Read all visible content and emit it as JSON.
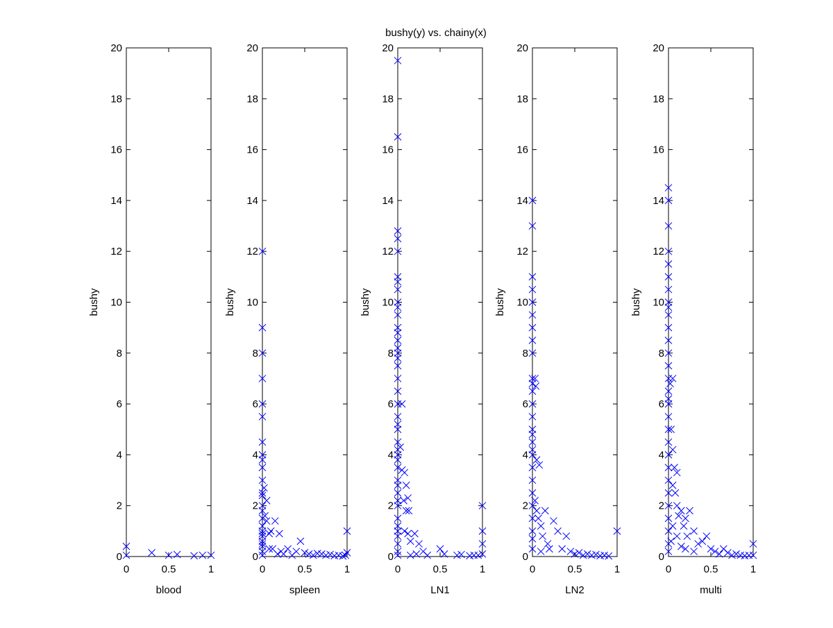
{
  "chart_data": {
    "type": "scatter",
    "title": "bushy(y) vs. chainy(x)",
    "marker": "x",
    "color": "#0000ff",
    "ylim": [
      0,
      20
    ],
    "xlim": [
      0,
      1
    ],
    "yticks": [
      "0",
      "2",
      "4",
      "6",
      "8",
      "10",
      "12",
      "14",
      "16",
      "18",
      "20"
    ],
    "xticks": [
      "0",
      "0.5",
      "1"
    ],
    "grid": false,
    "panels": [
      {
        "xlabel": "blood",
        "ylabel": "bushy",
        "points": [
          [
            0,
            0.4
          ],
          [
            0,
            0.05
          ],
          [
            0.3,
            0.15
          ],
          [
            0.5,
            0.05
          ],
          [
            0.6,
            0.08
          ],
          [
            0.8,
            0.03
          ],
          [
            0.9,
            0.05
          ],
          [
            1,
            0.05
          ]
        ]
      },
      {
        "xlabel": "spleen",
        "ylabel": "bushy",
        "points": [
          [
            0,
            12
          ],
          [
            0,
            9
          ],
          [
            0,
            8
          ],
          [
            0,
            7
          ],
          [
            0,
            6
          ],
          [
            0,
            5.5
          ],
          [
            0,
            4.5
          ],
          [
            0,
            4
          ],
          [
            0,
            3.8
          ],
          [
            0,
            3.5
          ],
          [
            0,
            3
          ],
          [
            0,
            2.5
          ],
          [
            0,
            2.4
          ],
          [
            0,
            2
          ],
          [
            0,
            1.8
          ],
          [
            0,
            1.5
          ],
          [
            0,
            1.2
          ],
          [
            0,
            1
          ],
          [
            0,
            0.9
          ],
          [
            0,
            0.8
          ],
          [
            0,
            0.6
          ],
          [
            0,
            0.5
          ],
          [
            0,
            0.4
          ],
          [
            0,
            0.2
          ],
          [
            0,
            0.05
          ],
          [
            0.02,
            2.7
          ],
          [
            0.05,
            2.2
          ],
          [
            0.03,
            1.6
          ],
          [
            0.05,
            1.4
          ],
          [
            0.08,
            0.9
          ],
          [
            0.1,
            1.0
          ],
          [
            0.12,
            0.3
          ],
          [
            0.15,
            1.4
          ],
          [
            0.08,
            0.3
          ],
          [
            0.2,
            0.9
          ],
          [
            0.25,
            0.1
          ],
          [
            0.3,
            0.3
          ],
          [
            0.35,
            0.05
          ],
          [
            0.45,
            0.6
          ],
          [
            0.4,
            0.2
          ],
          [
            0.5,
            0.15
          ],
          [
            0.55,
            0.1
          ],
          [
            0.6,
            0.05
          ],
          [
            0.65,
            0.12
          ],
          [
            0.7,
            0.1
          ],
          [
            0.75,
            0.05
          ],
          [
            0.8,
            0.08
          ],
          [
            0.85,
            0.03
          ],
          [
            0.9,
            0.05
          ],
          [
            0.95,
            0.02
          ],
          [
            1,
            1.0
          ],
          [
            1,
            0.15
          ],
          [
            0.98,
            0.05
          ],
          [
            0.18,
            0.1
          ],
          [
            0.22,
            0.2
          ]
        ]
      },
      {
        "xlabel": "LN1",
        "ylabel": "bushy",
        "points": [
          [
            0,
            19.5
          ],
          [
            0,
            16.5
          ],
          [
            0,
            12.8
          ],
          [
            0,
            12.5
          ],
          [
            0,
            12
          ],
          [
            0,
            11
          ],
          [
            0,
            10.8
          ],
          [
            0,
            10.5
          ],
          [
            0,
            10
          ],
          [
            0,
            9.8
          ],
          [
            0,
            9.5
          ],
          [
            0,
            9
          ],
          [
            0,
            8.8
          ],
          [
            0,
            8.5
          ],
          [
            0,
            8.2
          ],
          [
            0,
            8
          ],
          [
            0,
            7.8
          ],
          [
            0,
            7.5
          ],
          [
            0,
            7
          ],
          [
            0,
            6.5
          ],
          [
            0,
            6
          ],
          [
            0,
            5.5
          ],
          [
            0,
            5.2
          ],
          [
            0,
            5
          ],
          [
            0,
            4.5
          ],
          [
            0,
            4.2
          ],
          [
            0,
            4
          ],
          [
            0,
            3.8
          ],
          [
            0,
            3.5
          ],
          [
            0,
            3
          ],
          [
            0,
            2.8
          ],
          [
            0,
            2.5
          ],
          [
            0,
            2.2
          ],
          [
            0,
            2
          ],
          [
            0,
            1.5
          ],
          [
            0,
            1.2
          ],
          [
            0,
            1
          ],
          [
            0,
            0.8
          ],
          [
            0,
            0.5
          ],
          [
            0,
            0.2
          ],
          [
            0,
            0.05
          ],
          [
            0.05,
            6
          ],
          [
            0.03,
            4.3
          ],
          [
            0.05,
            3.4
          ],
          [
            0.08,
            3.3
          ],
          [
            0.1,
            2.8
          ],
          [
            0.07,
            2.2
          ],
          [
            0.12,
            2.3
          ],
          [
            0.1,
            1.8
          ],
          [
            0.13,
            1.8
          ],
          [
            0.08,
            1.0
          ],
          [
            0.12,
            0.9
          ],
          [
            0.15,
            0.6
          ],
          [
            0.2,
            0.9
          ],
          [
            0.25,
            0.5
          ],
          [
            0.22,
            0.1
          ],
          [
            0.3,
            0.2
          ],
          [
            0.35,
            0.05
          ],
          [
            0.5,
            0.3
          ],
          [
            0.55,
            0.1
          ],
          [
            0.7,
            0.05
          ],
          [
            0.75,
            0.08
          ],
          [
            0.85,
            0.03
          ],
          [
            0.9,
            0.05
          ],
          [
            0.95,
            0.05
          ],
          [
            1,
            2.0
          ],
          [
            1,
            1.0
          ],
          [
            1,
            0.5
          ],
          [
            1,
            0.1
          ],
          [
            0.15,
            0.05
          ]
        ]
      },
      {
        "xlabel": "LN2",
        "ylabel": "bushy",
        "points": [
          [
            0,
            14
          ],
          [
            0,
            13
          ],
          [
            0,
            11
          ],
          [
            0,
            10.5
          ],
          [
            0,
            10
          ],
          [
            0,
            9.5
          ],
          [
            0,
            9
          ],
          [
            0,
            8.5
          ],
          [
            0,
            8
          ],
          [
            0,
            7
          ],
          [
            0,
            6.8
          ],
          [
            0,
            6.5
          ],
          [
            0,
            6
          ],
          [
            0,
            5.5
          ],
          [
            0,
            5
          ],
          [
            0,
            4.8
          ],
          [
            0,
            4.5
          ],
          [
            0,
            4.2
          ],
          [
            0,
            4
          ],
          [
            0,
            3.5
          ],
          [
            0,
            3
          ],
          [
            0,
            2.5
          ],
          [
            0,
            2
          ],
          [
            0,
            1.5
          ],
          [
            0,
            1
          ],
          [
            0,
            0.7
          ],
          [
            0,
            0.3
          ],
          [
            0.03,
            7
          ],
          [
            0.04,
            6.7
          ],
          [
            0.05,
            3.8
          ],
          [
            0.08,
            3.6
          ],
          [
            0.03,
            2.2
          ],
          [
            0.05,
            1.8
          ],
          [
            0.07,
            1.5
          ],
          [
            0.1,
            1.2
          ],
          [
            0.12,
            0.8
          ],
          [
            0.15,
            1.8
          ],
          [
            0.18,
            0.5
          ],
          [
            0.2,
            0.3
          ],
          [
            0.25,
            1.4
          ],
          [
            0.3,
            1.0
          ],
          [
            0.35,
            0.3
          ],
          [
            0.4,
            0.8
          ],
          [
            0.45,
            0.2
          ],
          [
            0.5,
            0.1
          ],
          [
            0.55,
            0.15
          ],
          [
            0.6,
            0.05
          ],
          [
            0.65,
            0.1
          ],
          [
            0.7,
            0.05
          ],
          [
            0.75,
            0.08
          ],
          [
            0.8,
            0.03
          ],
          [
            0.85,
            0.05
          ],
          [
            0.9,
            0.02
          ],
          [
            1,
            1.0
          ],
          [
            0.1,
            0.2
          ]
        ]
      },
      {
        "xlabel": "multi",
        "ylabel": "bushy",
        "points": [
          [
            0,
            14.5
          ],
          [
            0,
            14
          ],
          [
            0,
            13
          ],
          [
            0,
            12
          ],
          [
            0,
            11.5
          ],
          [
            0,
            11
          ],
          [
            0,
            10.5
          ],
          [
            0,
            10
          ],
          [
            0,
            9.8
          ],
          [
            0,
            9.5
          ],
          [
            0,
            9
          ],
          [
            0,
            8.5
          ],
          [
            0,
            8
          ],
          [
            0,
            7.5
          ],
          [
            0,
            7
          ],
          [
            0,
            6.5
          ],
          [
            0,
            6.2
          ],
          [
            0,
            6
          ],
          [
            0,
            5.5
          ],
          [
            0,
            5
          ],
          [
            0,
            4.5
          ],
          [
            0,
            4
          ],
          [
            0,
            3.5
          ],
          [
            0,
            3
          ],
          [
            0,
            2.5
          ],
          [
            0,
            2
          ],
          [
            0,
            1.5
          ],
          [
            0,
            1
          ],
          [
            0,
            0.5
          ],
          [
            0,
            0.2
          ],
          [
            0.02,
            6.8
          ],
          [
            0.05,
            7
          ],
          [
            0.03,
            5
          ],
          [
            0.05,
            4.2
          ],
          [
            0.07,
            3.5
          ],
          [
            0.1,
            3.3
          ],
          [
            0.05,
            2.8
          ],
          [
            0.08,
            2.5
          ],
          [
            0.1,
            2
          ],
          [
            0.12,
            1.6
          ],
          [
            0.15,
            1.8
          ],
          [
            0.18,
            1.2
          ],
          [
            0.2,
            1.5
          ],
          [
            0.22,
            0.8
          ],
          [
            0.25,
            1.8
          ],
          [
            0.3,
            1.0
          ],
          [
            0.35,
            0.5
          ],
          [
            0.4,
            0.6
          ],
          [
            0.45,
            0.8
          ],
          [
            0.5,
            0.3
          ],
          [
            0.55,
            0.2
          ],
          [
            0.6,
            0.1
          ],
          [
            0.65,
            0.3
          ],
          [
            0.7,
            0.15
          ],
          [
            0.75,
            0.05
          ],
          [
            0.8,
            0.1
          ],
          [
            0.85,
            0.05
          ],
          [
            0.9,
            0.03
          ],
          [
            0.95,
            0.05
          ],
          [
            1,
            0.5
          ],
          [
            1,
            0.05
          ],
          [
            0.15,
            0.4
          ],
          [
            0.1,
            0.8
          ],
          [
            0.05,
            1.2
          ],
          [
            0.03,
            0.6
          ],
          [
            0.2,
            0.3
          ],
          [
            0.3,
            0.2
          ]
        ]
      }
    ]
  }
}
